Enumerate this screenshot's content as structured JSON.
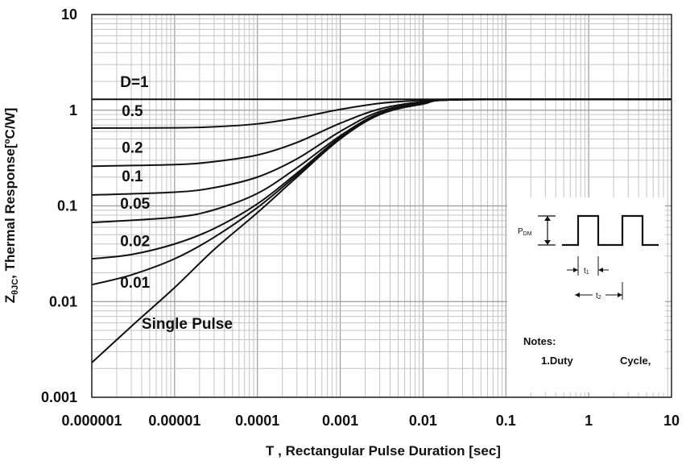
{
  "chart_data": {
    "type": "line",
    "title": "",
    "xlabel": "T , Rectangular Pulse Duration [sec]",
    "ylabel_main": "Z",
    "ylabel_sub": "θJC",
    "ylabel_rest": ", Thermal Response[ºC/W]",
    "x_scale": "log",
    "y_scale": "log",
    "xlim": [
      1e-06,
      10
    ],
    "ylim": [
      0.001,
      10
    ],
    "x_ticks": [
      {
        "value": 1e-06,
        "label": "0.000001"
      },
      {
        "value": 1e-05,
        "label": "0.00001"
      },
      {
        "value": 0.0001,
        "label": "0.0001"
      },
      {
        "value": 0.001,
        "label": "0.001"
      },
      {
        "value": 0.01,
        "label": "0.01"
      },
      {
        "value": 0.1,
        "label": "0.1"
      },
      {
        "value": 1,
        "label": "1"
      },
      {
        "value": 10,
        "label": "10"
      }
    ],
    "y_ticks": [
      {
        "value": 0.001,
        "label": "0.001"
      },
      {
        "value": 0.01,
        "label": "0.01"
      },
      {
        "value": 0.1,
        "label": "0.1"
      },
      {
        "value": 1,
        "label": "1"
      },
      {
        "value": 10,
        "label": "10"
      }
    ],
    "grid": true,
    "series": [
      {
        "name": "D=1",
        "label": "D=1",
        "label_at": [
          2.2e-06,
          1.75
        ],
        "points": [
          [
            1e-06,
            1.3
          ],
          [
            10,
            1.3
          ]
        ]
      },
      {
        "name": "0.5",
        "label": "0.5",
        "label_at": [
          2.3e-06,
          0.87
        ],
        "points": [
          [
            1e-06,
            0.65
          ],
          [
            1e-05,
            0.655
          ],
          [
            3e-05,
            0.67
          ],
          [
            0.0001,
            0.72
          ],
          [
            0.0003,
            0.83
          ],
          [
            0.001,
            1.02
          ],
          [
            0.003,
            1.18
          ],
          [
            0.01,
            1.27
          ],
          [
            0.03,
            1.3
          ],
          [
            10,
            1.3
          ]
        ]
      },
      {
        "name": "0.2",
        "label": "0.2",
        "label_at": [
          2.3e-06,
          0.36
        ],
        "points": [
          [
            1e-06,
            0.26
          ],
          [
            1e-05,
            0.27
          ],
          [
            3e-05,
            0.29
          ],
          [
            0.0001,
            0.34
          ],
          [
            0.0003,
            0.46
          ],
          [
            0.001,
            0.73
          ],
          [
            0.003,
            1.03
          ],
          [
            0.01,
            1.23
          ],
          [
            0.03,
            1.3
          ],
          [
            10,
            1.3
          ]
        ]
      },
      {
        "name": "0.1",
        "label": "0.1",
        "label_at": [
          2.3e-06,
          0.18
        ],
        "points": [
          [
            1e-06,
            0.13
          ],
          [
            1e-05,
            0.139
          ],
          [
            3e-05,
            0.155
          ],
          [
            0.0001,
            0.2
          ],
          [
            0.0003,
            0.31
          ],
          [
            0.001,
            0.6
          ],
          [
            0.003,
            0.97
          ],
          [
            0.01,
            1.2
          ],
          [
            0.03,
            1.29
          ],
          [
            10,
            1.3
          ]
        ]
      },
      {
        "name": "0.05",
        "label": "0.05",
        "label_at": [
          2.2e-06,
          0.093
        ],
        "points": [
          [
            1e-06,
            0.067
          ],
          [
            1e-05,
            0.076
          ],
          [
            3e-05,
            0.091
          ],
          [
            0.0001,
            0.135
          ],
          [
            0.0003,
            0.25
          ],
          [
            0.001,
            0.54
          ],
          [
            0.003,
            0.93
          ],
          [
            0.01,
            1.18
          ],
          [
            0.03,
            1.29
          ],
          [
            10,
            1.3
          ]
        ]
      },
      {
        "name": "0.02",
        "label": "0.02",
        "label_at": [
          2.2e-06,
          0.038
        ],
        "points": [
          [
            1e-06,
            0.028
          ],
          [
            3e-06,
            0.031
          ],
          [
            1e-05,
            0.04
          ],
          [
            3e-05,
            0.058
          ],
          [
            0.0001,
            0.105
          ],
          [
            0.0003,
            0.22
          ],
          [
            0.001,
            0.52
          ],
          [
            0.003,
            0.92
          ],
          [
            0.01,
            1.17
          ],
          [
            0.03,
            1.29
          ],
          [
            10,
            1.3
          ]
        ]
      },
      {
        "name": "0.01",
        "label": "0.01",
        "label_at": [
          2.2e-06,
          0.014
        ],
        "points": [
          [
            1e-06,
            0.015
          ],
          [
            3e-06,
            0.019
          ],
          [
            1e-05,
            0.028
          ],
          [
            3e-05,
            0.047
          ],
          [
            0.0001,
            0.096
          ],
          [
            0.0003,
            0.21
          ],
          [
            0.001,
            0.51
          ],
          [
            0.003,
            0.91
          ],
          [
            0.01,
            1.17
          ],
          [
            0.03,
            1.29
          ],
          [
            10,
            1.3
          ]
        ]
      },
      {
        "name": "Single Pulse",
        "label": "Single Pulse",
        "label_at": [
          4e-06,
          0.0052
        ],
        "points": [
          [
            1e-06,
            0.0023
          ],
          [
            3e-06,
            0.0055
          ],
          [
            1e-05,
            0.014
          ],
          [
            3e-05,
            0.035
          ],
          [
            0.0001,
            0.085
          ],
          [
            0.0003,
            0.2
          ],
          [
            0.001,
            0.5
          ],
          [
            0.003,
            0.9
          ],
          [
            0.01,
            1.16
          ],
          [
            0.03,
            1.29
          ],
          [
            10,
            1.3
          ]
        ]
      }
    ],
    "inset": {
      "pdm_main": "P",
      "pdm_sub": "DM",
      "t1_main": "t",
      "t1_sub": "1",
      "t2_main": "t",
      "t2_sub": "2",
      "notes_title": "Notes:",
      "notes_line_a": "1.Duty",
      "notes_line_b": "Cycle,"
    }
  }
}
